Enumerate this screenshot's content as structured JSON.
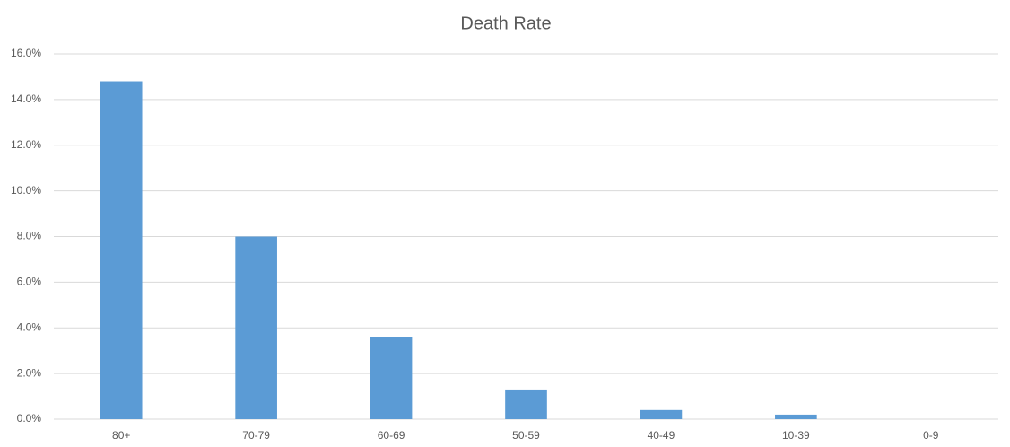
{
  "chart_data": {
    "type": "bar",
    "title": "Death Rate",
    "categories": [
      "80+",
      "70-79",
      "60-69",
      "50-59",
      "40-49",
      "10-39",
      "0-9"
    ],
    "values": [
      14.8,
      8.0,
      3.6,
      1.3,
      0.4,
      0.2,
      0
    ],
    "color": "#5b9bd5",
    "ylim": [
      0,
      16
    ],
    "yticks": [
      {
        "value": 0,
        "label": "0.0%"
      },
      {
        "value": 2,
        "label": "2.0%"
      },
      {
        "value": 4,
        "label": "4.0%"
      },
      {
        "value": 6,
        "label": "6.0%"
      },
      {
        "value": 8,
        "label": "8.0%"
      },
      {
        "value": 10,
        "label": "10.0%"
      },
      {
        "value": 12,
        "label": "12.0%"
      },
      {
        "value": 14,
        "label": "14.0%"
      },
      {
        "value": 16,
        "label": "16.0%"
      }
    ],
    "grid": true
  }
}
